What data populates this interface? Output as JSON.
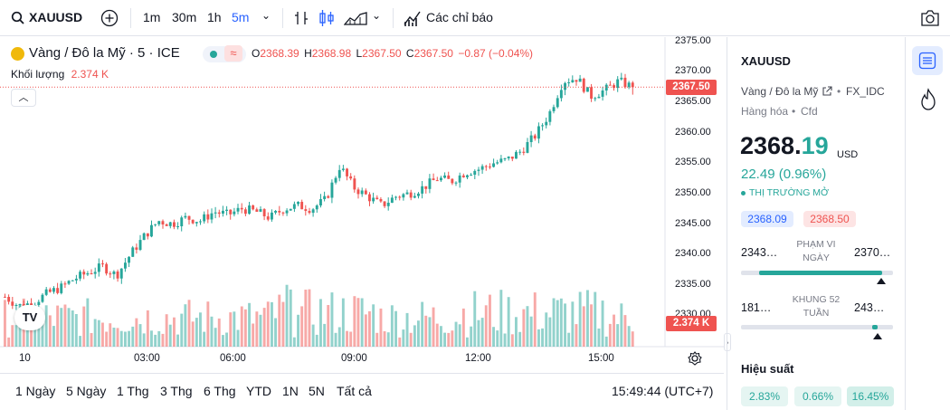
{
  "toolbar": {
    "symbol": "XAUUSD",
    "intervals": [
      "1m",
      "30m",
      "1h",
      "5m"
    ],
    "active_interval": "5m",
    "indicators_label": "Các chỉ báo"
  },
  "legend": {
    "name": "Vàng / Đô la Mỹ · 5 · ICE",
    "open_label": "O",
    "open": "2368.39",
    "high_label": "H",
    "high": "2368.98",
    "low_label": "L",
    "low": "2367.50",
    "close_label": "C",
    "close": "2367.50",
    "change": "−0.87 (−0.04%)",
    "volume_label": "Khối lượng",
    "volume": "2.374 K"
  },
  "price_axis": {
    "ticks": [
      "2375.00",
      "2370.00",
      "2365.00",
      "2360.00",
      "2355.00",
      "2350.00",
      "2345.00",
      "2340.00",
      "2335.00",
      "2330.00"
    ],
    "last_price_label": "2367.50",
    "volume_label": "2.374 K"
  },
  "time_axis": {
    "ticks": [
      "10",
      "03:00",
      "06:00",
      "09:00",
      "12:00",
      "15:00"
    ]
  },
  "bottom_bar": {
    "ranges": [
      "1 Ngày",
      "5 Ngày",
      "1 Thg",
      "3 Thg",
      "6 Thg",
      "YTD",
      "1N",
      "5N",
      "Tất cả"
    ],
    "clock": "15:49:44 (UTC+7)"
  },
  "details": {
    "symbol": "XAUUSD",
    "name": "Vàng / Đô la Mỹ",
    "exchange": "FX_IDC",
    "type": "Hàng hóa",
    "subtype": "Cfd",
    "price_int": "2368.",
    "price_dec": "19",
    "currency": "USD",
    "change": "22.49 (0.96%)",
    "market_status": "THỊ TRƯỜNG MỞ",
    "bid": "2368.09",
    "ask": "2368.50",
    "day_low": "2343…",
    "day_range_label": "PHẠM VI NGÀY",
    "day_high": "2370…",
    "wk52_low": "181…",
    "wk52_label": "KHUNG 52 TUẦN",
    "wk52_high": "243…",
    "perf_label": "Hiệu suất",
    "perf": [
      "2.83%",
      "0.66%",
      "16.45%"
    ]
  },
  "colors": {
    "up": "#26a69a",
    "down": "#ef5350",
    "accent": "#2962ff",
    "text": "#131722"
  },
  "chart_data": {
    "type": "candlestick",
    "symbol": "XAUUSD",
    "interval": "5m",
    "x": [
      "10",
      "03:00",
      "06:00",
      "09:00",
      "12:00",
      "15:00"
    ],
    "close_path": [
      2333.0,
      2331.5,
      2332.0,
      2333.5,
      2334.5,
      2336.0,
      2337.0,
      2338.0,
      2336.5,
      2340.0,
      2343.0,
      2345.5,
      2345.0,
      2346.0,
      2345.5,
      2347.0,
      2346.5,
      2347.5,
      2347.0,
      2346.0,
      2347.5,
      2348.0,
      2347.5,
      2349.0,
      2354.5,
      2351.0,
      2349.5,
      2348.0,
      2349.5,
      2350.0,
      2351.0,
      2352.5,
      2352.0,
      2353.5,
      2354.0,
      2355.0,
      2355.5,
      2357.0,
      2359.5,
      2363.0,
      2368.5,
      2369.0,
      2366.0,
      2367.0,
      2368.5,
      2367.5
    ],
    "ylim": [
      2327,
      2376
    ],
    "last_price": 2367.5,
    "last_volume": "2.374 K"
  }
}
